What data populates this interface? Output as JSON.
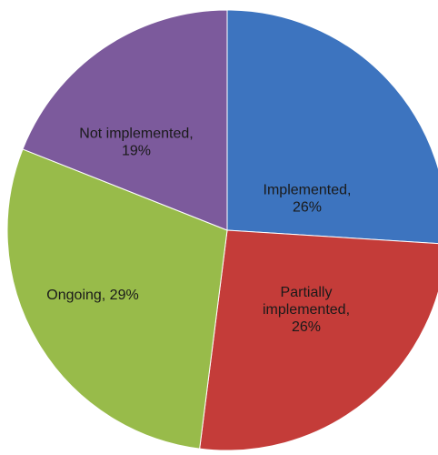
{
  "chart_data": {
    "type": "pie",
    "title": "",
    "slices": [
      {
        "label": "Implemented",
        "value": 26,
        "display_lines": [
          "Implemented,",
          "26%"
        ],
        "color": "#3d74bf"
      },
      {
        "label": "Partially implemented",
        "value": 26,
        "display_lines": [
          "Partially",
          "implemented,",
          "26%"
        ],
        "color": "#c43c39"
      },
      {
        "label": "Ongoing",
        "value": 29,
        "display_lines": [
          "Ongoing,  29%"
        ],
        "color": "#98bb4a"
      },
      {
        "label": "Not implemented",
        "value": 19,
        "display_lines": [
          "Not implemented,",
          "19%"
        ],
        "color": "#7c5a9c"
      }
    ],
    "start_angle_deg": 0,
    "direction": "clockwise",
    "legend": "none",
    "label_color": "#1a1a1a"
  }
}
